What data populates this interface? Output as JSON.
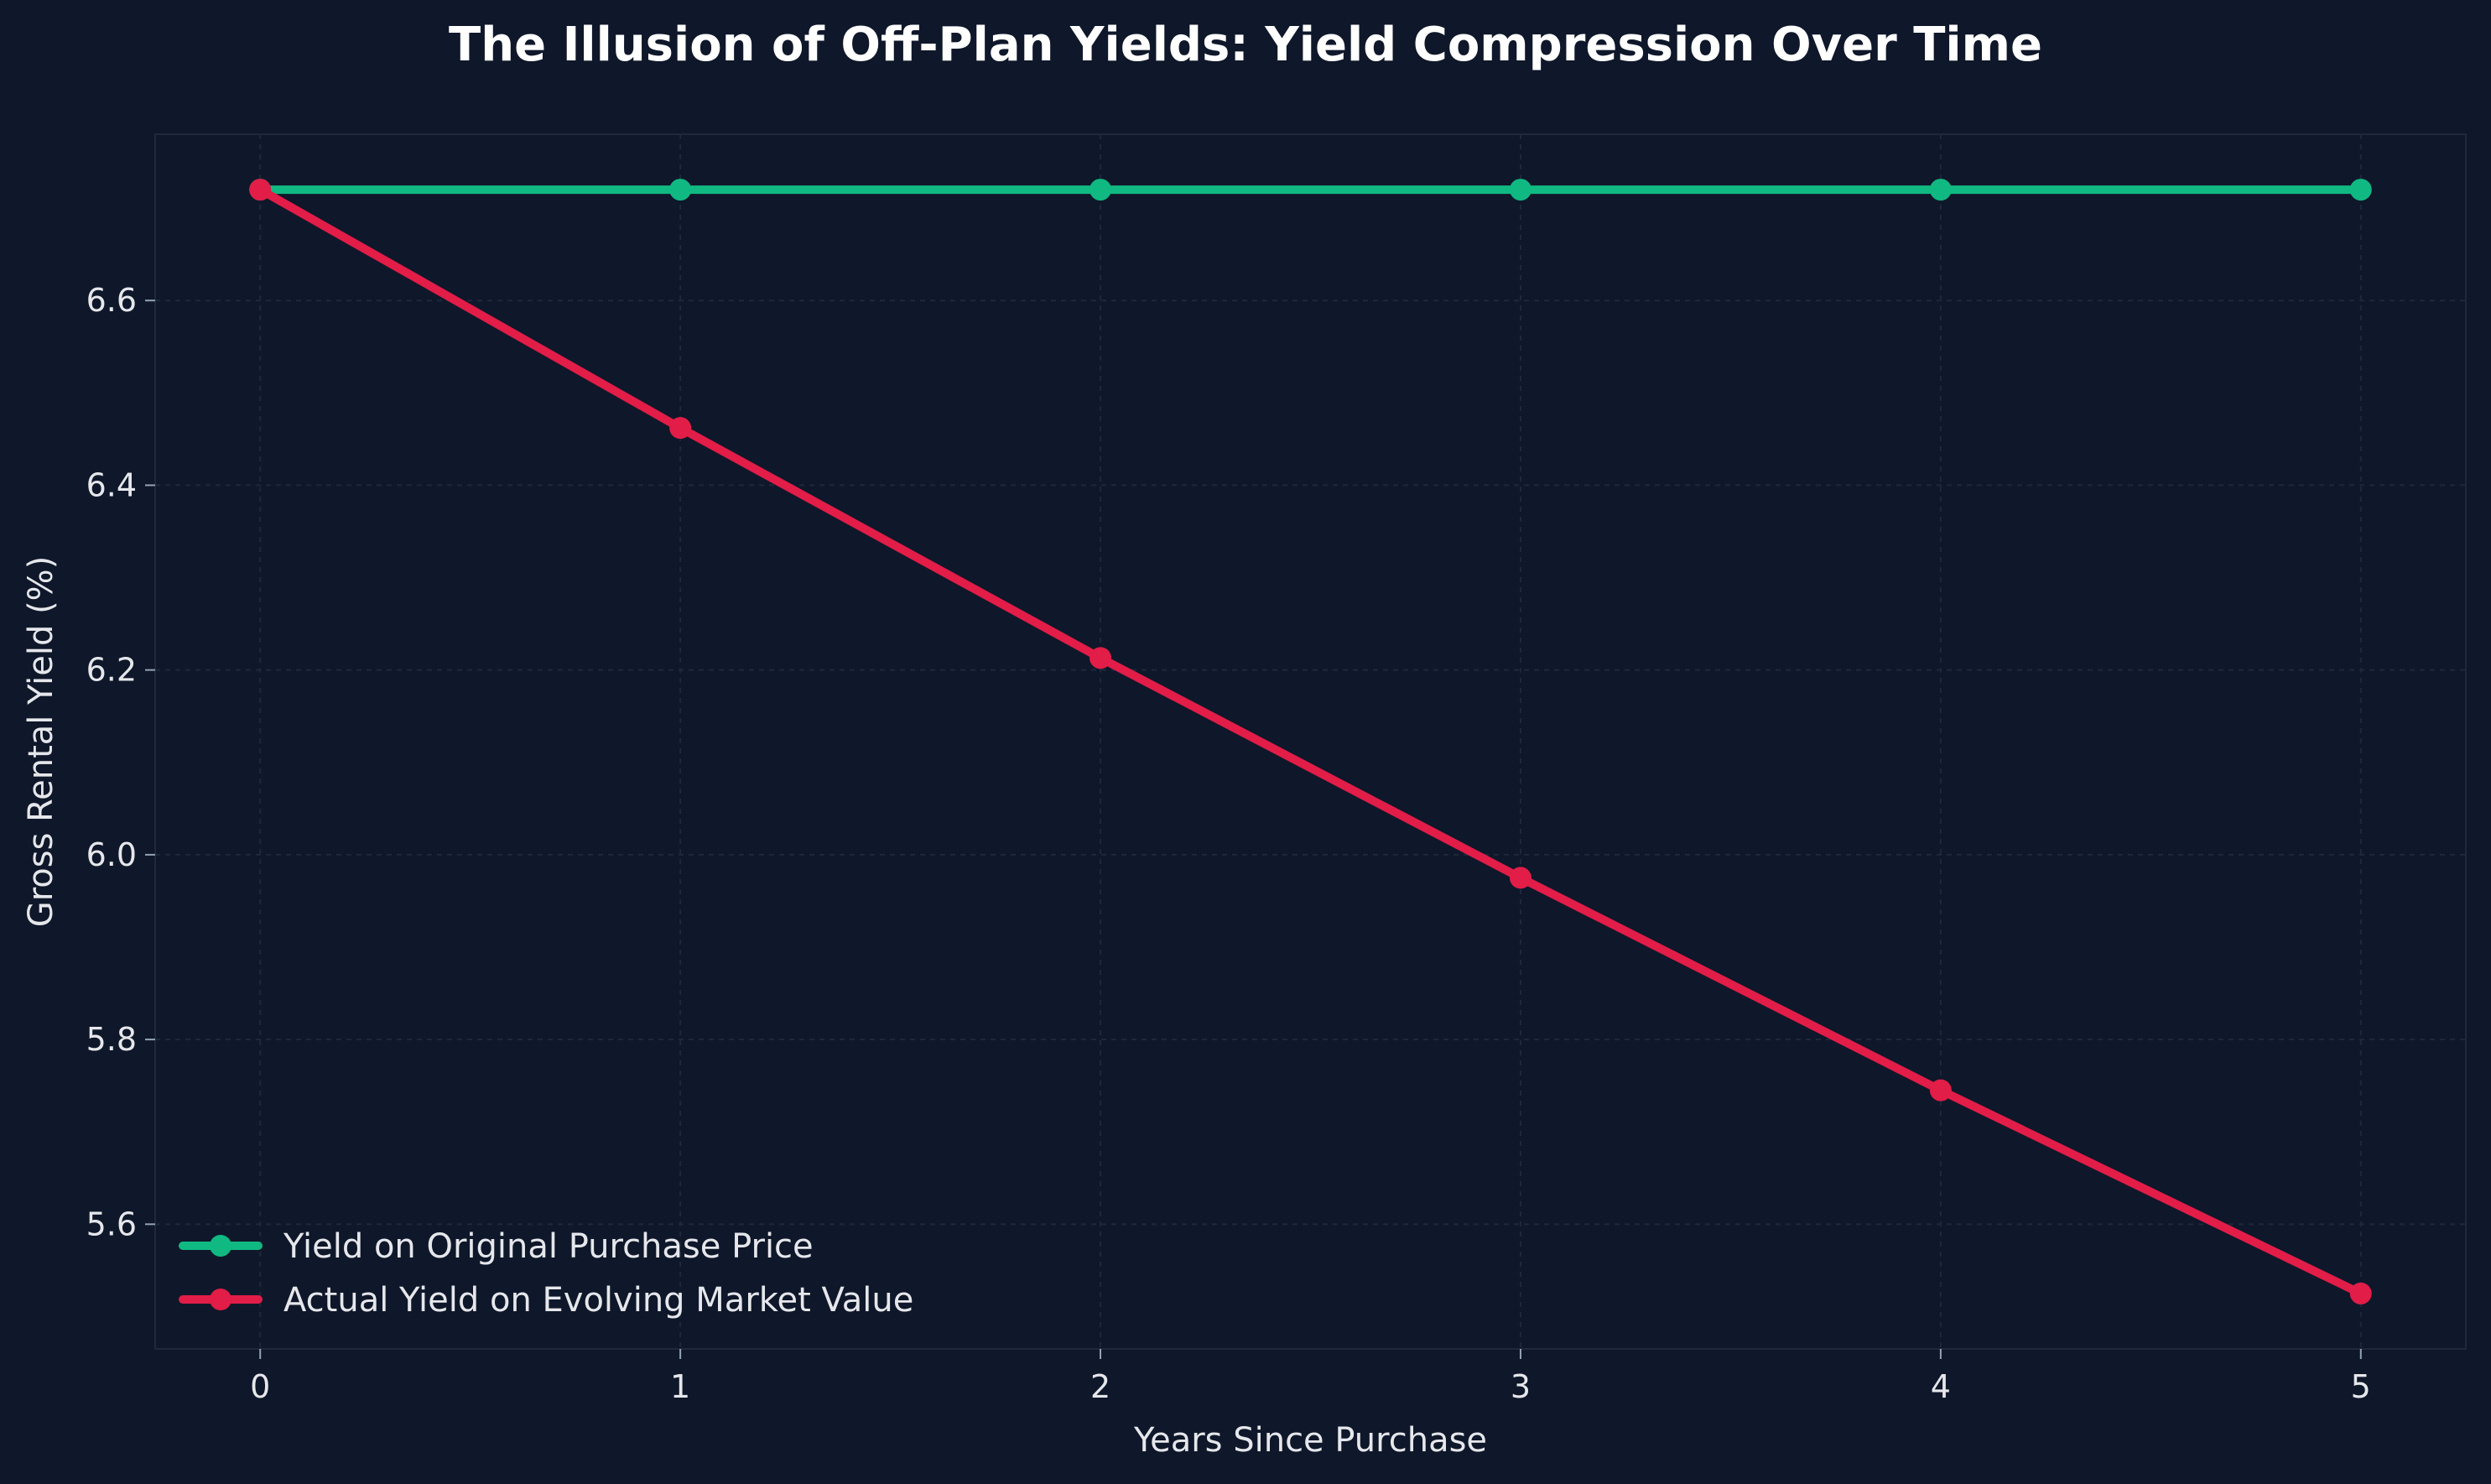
{
  "chart_data": {
    "type": "line",
    "title": "The Illusion of Off-Plan Yields: Yield Compression Over Time",
    "xlabel": "Years Since Purchase",
    "ylabel": "Gross Rental Yield (%)",
    "x": [
      0,
      1,
      2,
      3,
      4,
      5
    ],
    "xlim": [
      -0.25,
      5.25
    ],
    "ylim": [
      5.465,
      6.78
    ],
    "xticks": [
      "0",
      "1",
      "2",
      "3",
      "4",
      "5"
    ],
    "yticks": [
      "5.6",
      "5.8",
      "6.0",
      "6.2",
      "6.4",
      "6.6"
    ],
    "grid": true,
    "legend_position": "lower-left",
    "series": [
      {
        "name": "Yield on Original Purchase Price",
        "color": "#10b981",
        "values": [
          6.72,
          6.72,
          6.72,
          6.72,
          6.72,
          6.72
        ]
      },
      {
        "name": "Actual Yield on Evolving Market Value",
        "color": "#e11d48",
        "values": [
          6.72,
          6.462,
          6.213,
          5.975,
          5.745,
          5.525
        ]
      }
    ]
  }
}
